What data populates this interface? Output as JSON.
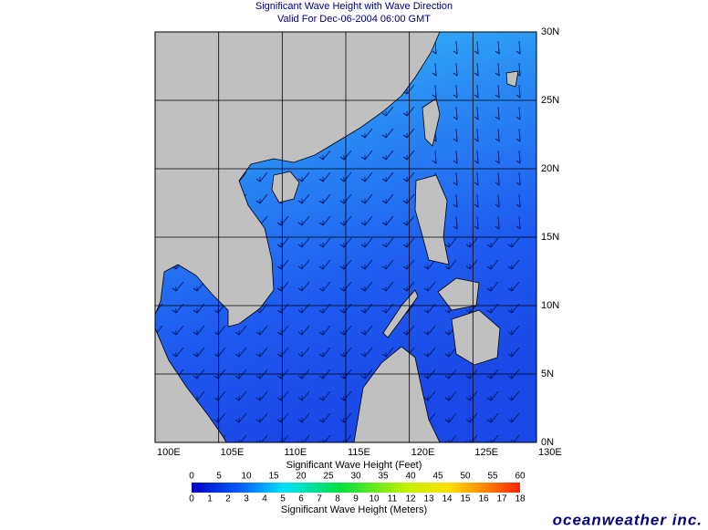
{
  "header": {
    "title": "Significant Wave Height with Wave Direction",
    "subtitle": "Valid For Dec-06-2004 06:00 GMT"
  },
  "map": {
    "lon_labels": [
      "100E",
      "105E",
      "110E",
      "115E",
      "120E",
      "125E",
      "130E"
    ],
    "lat_labels": [
      "0N",
      "5N",
      "10N",
      "15N",
      "20N",
      "25N",
      "30N"
    ]
  },
  "colorbar": {
    "feet_title": "Significant Wave Height (Feet)",
    "feet_labels": [
      0,
      5,
      10,
      15,
      20,
      25,
      30,
      35,
      40,
      45,
      50,
      55,
      60
    ],
    "meters_labels": [
      0,
      1,
      2,
      3,
      4,
      5,
      6,
      7,
      8,
      9,
      10,
      11,
      12,
      13,
      14,
      15,
      16,
      17,
      18
    ],
    "meters_title": "Significant Wave Height (Meters)"
  },
  "logo": "oceanweather inc."
}
